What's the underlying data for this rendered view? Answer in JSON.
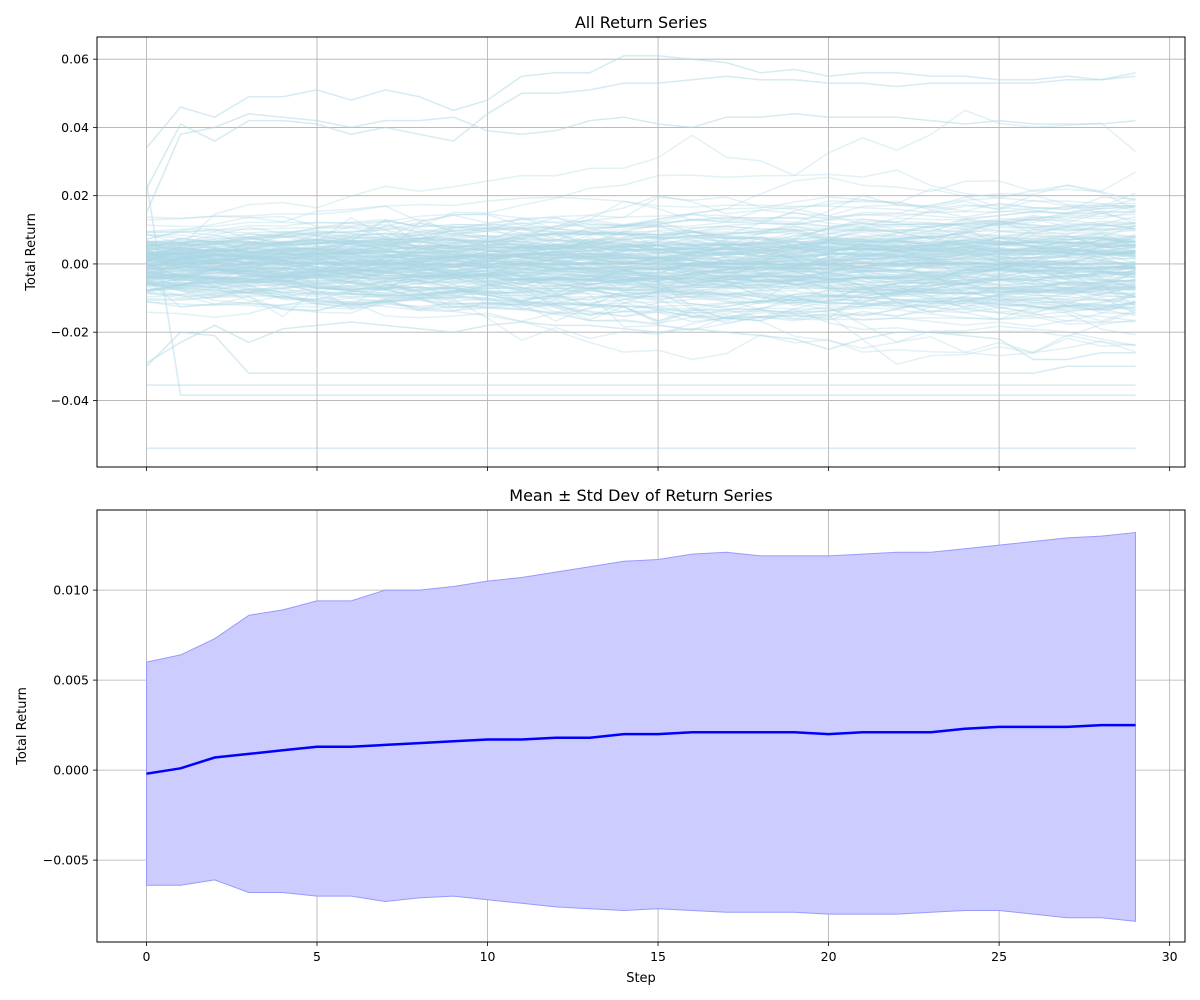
{
  "chart_data": [
    {
      "type": "line",
      "title": "All Return Series",
      "xlabel": "",
      "ylabel": "Total Return",
      "xlim": [
        -1.45,
        30.45
      ],
      "ylim": [
        -0.0595,
        0.0665
      ],
      "xticks": [
        0,
        5,
        10,
        15,
        20,
        25,
        30
      ],
      "yticks": [
        -0.04,
        -0.02,
        0.0,
        0.02,
        0.04,
        0.06
      ],
      "ytick_labels": [
        "−0.04",
        "−0.02",
        "0.00",
        "0.02",
        "0.04",
        "0.06"
      ],
      "grid": true,
      "series_color": "#add8e6",
      "series_count_approx": 200,
      "x": [
        0,
        1,
        2,
        3,
        4,
        5,
        6,
        7,
        8,
        9,
        10,
        11,
        12,
        13,
        14,
        15,
        16,
        17,
        18,
        19,
        20,
        21,
        22,
        23,
        24,
        25,
        26,
        27,
        28,
        29
      ],
      "highlight_series": [
        {
          "values": [
            0.034,
            0.046,
            0.043,
            0.049,
            0.049,
            0.051,
            0.048,
            0.051,
            0.049,
            0.045,
            0.048,
            0.055,
            0.056,
            0.056,
            0.061,
            0.061,
            0.06,
            0.059,
            0.056,
            0.057,
            0.055,
            0.056,
            0.056,
            0.055,
            0.055,
            0.054,
            0.054,
            0.055,
            0.054,
            0.056
          ]
        },
        {
          "values": [
            0.022,
            0.041,
            0.036,
            0.042,
            0.042,
            0.041,
            0.038,
            0.04,
            0.038,
            0.036,
            0.044,
            0.05,
            0.05,
            0.051,
            0.053,
            0.053,
            0.054,
            0.055,
            0.054,
            0.054,
            0.053,
            0.053,
            0.052,
            0.053,
            0.053,
            0.053,
            0.053,
            0.054,
            0.054,
            0.055
          ]
        },
        {
          "values": [
            0.015,
            0.038,
            0.04,
            0.044,
            0.043,
            0.042,
            0.04,
            0.042,
            0.042,
            0.043,
            0.039,
            0.038,
            0.039,
            0.042,
            0.043,
            0.041,
            0.04,
            0.043,
            0.043,
            0.044,
            0.043,
            0.043,
            0.043,
            0.042,
            0.041,
            0.042,
            0.041,
            0.041,
            0.041,
            0.042
          ]
        },
        {
          "values": [
            -0.029,
            -0.023,
            -0.018,
            -0.023,
            -0.019,
            -0.018,
            -0.017,
            -0.018,
            -0.019,
            -0.02,
            -0.018,
            -0.017,
            -0.018,
            -0.018,
            -0.019,
            -0.02,
            -0.019,
            -0.02,
            -0.021,
            -0.022,
            -0.025,
            -0.022,
            -0.02,
            -0.02,
            -0.021,
            -0.022,
            -0.028,
            -0.028,
            -0.026,
            -0.026
          ]
        },
        {
          "values": [
            -0.03,
            -0.02,
            -0.021,
            -0.032,
            -0.032,
            -0.032,
            -0.032,
            -0.032,
            -0.032,
            -0.032,
            -0.032,
            -0.032,
            -0.032,
            -0.032,
            -0.032,
            -0.032,
            -0.032,
            -0.032,
            -0.032,
            -0.032,
            -0.032,
            -0.032,
            -0.032,
            -0.032,
            -0.032,
            -0.032,
            -0.032,
            -0.03,
            -0.03,
            -0.03
          ]
        },
        {
          "values": [
            -0.0355,
            -0.0355,
            -0.0355,
            -0.0355,
            -0.0355,
            -0.0355,
            -0.0355,
            -0.0355,
            -0.0355,
            -0.0355,
            -0.0355,
            -0.0355,
            -0.0355,
            -0.0355,
            -0.0355,
            -0.0355,
            -0.0355,
            -0.0355,
            -0.0355,
            -0.0355,
            -0.0355,
            -0.0355,
            -0.0355,
            -0.0355,
            -0.0355,
            -0.0355,
            -0.0355,
            -0.0355,
            -0.0355,
            -0.0355
          ]
        },
        {
          "values": [
            0.024,
            -0.0385,
            -0.0385,
            -0.0385,
            -0.0385,
            -0.0385,
            -0.0385,
            -0.0385,
            -0.0385,
            -0.0385,
            -0.0385,
            -0.0385,
            -0.0385,
            -0.0385,
            -0.0385,
            -0.0385,
            -0.0385,
            -0.0385,
            -0.0385,
            -0.0385,
            -0.0385,
            -0.0385,
            -0.0385,
            -0.0385,
            -0.0385,
            -0.0385,
            -0.0385,
            -0.0385,
            -0.0385,
            -0.0385
          ]
        },
        {
          "values": [
            -0.054,
            -0.054,
            -0.054,
            -0.054,
            -0.054,
            -0.054,
            -0.054,
            -0.054,
            -0.054,
            -0.054,
            -0.054,
            -0.054,
            -0.054,
            -0.054,
            -0.054,
            -0.054,
            -0.054,
            -0.054,
            -0.054,
            -0.054,
            -0.054,
            -0.054,
            -0.054,
            -0.054,
            -0.054,
            -0.054,
            -0.054,
            -0.054,
            -0.054,
            -0.054
          ]
        }
      ]
    },
    {
      "type": "area",
      "title": "Mean ± Std Dev of Return Series",
      "xlabel": "Step",
      "ylabel": "Total Return",
      "xlim": [
        -1.45,
        30.45
      ],
      "ylim": [
        -0.00955,
        0.01445
      ],
      "xticks": [
        0,
        5,
        10,
        15,
        20,
        25,
        30
      ],
      "yticks": [
        -0.005,
        0.0,
        0.005,
        0.01
      ],
      "ytick_labels": [
        "−0.005",
        "0.000",
        "0.005",
        "0.010"
      ],
      "grid": true,
      "mean_color": "#0000ff",
      "band_color": "#ccccff",
      "x": [
        0,
        1,
        2,
        3,
        4,
        5,
        6,
        7,
        8,
        9,
        10,
        11,
        12,
        13,
        14,
        15,
        16,
        17,
        18,
        19,
        20,
        21,
        22,
        23,
        24,
        25,
        26,
        27,
        28,
        29
      ],
      "series": [
        {
          "values": [
            -0.0002,
            0.0001,
            0.0007,
            0.0009,
            0.0011,
            0.0013,
            0.0013,
            0.0014,
            0.0015,
            0.0016,
            0.0017,
            0.0017,
            0.0018,
            0.0018,
            0.002,
            0.002,
            0.0021,
            0.0021,
            0.0021,
            0.0021,
            0.002,
            0.0021,
            0.0021,
            0.0021,
            0.0023,
            0.0024,
            0.0024,
            0.0024,
            0.0025,
            0.0025
          ]
        },
        {
          "values": [
            0.006,
            0.0064,
            0.0073,
            0.0086,
            0.0089,
            0.0094,
            0.0094,
            0.01,
            0.01,
            0.0102,
            0.0105,
            0.0107,
            0.011,
            0.0113,
            0.0116,
            0.0117,
            0.012,
            0.0121,
            0.0119,
            0.0119,
            0.0119,
            0.012,
            0.0121,
            0.0121,
            0.0123,
            0.0125,
            0.0127,
            0.0129,
            0.013,
            0.0132
          ]
        },
        {
          "values": [
            -0.0064,
            -0.0064,
            -0.0061,
            -0.0068,
            -0.0068,
            -0.007,
            -0.007,
            -0.0073,
            -0.0071,
            -0.007,
            -0.0072,
            -0.0074,
            -0.0076,
            -0.0077,
            -0.0078,
            -0.0077,
            -0.0078,
            -0.0079,
            -0.0079,
            -0.0079,
            -0.008,
            -0.008,
            -0.008,
            -0.0079,
            -0.0078,
            -0.0078,
            -0.008,
            -0.0082,
            -0.0082,
            -0.0084
          ]
        }
      ]
    }
  ]
}
